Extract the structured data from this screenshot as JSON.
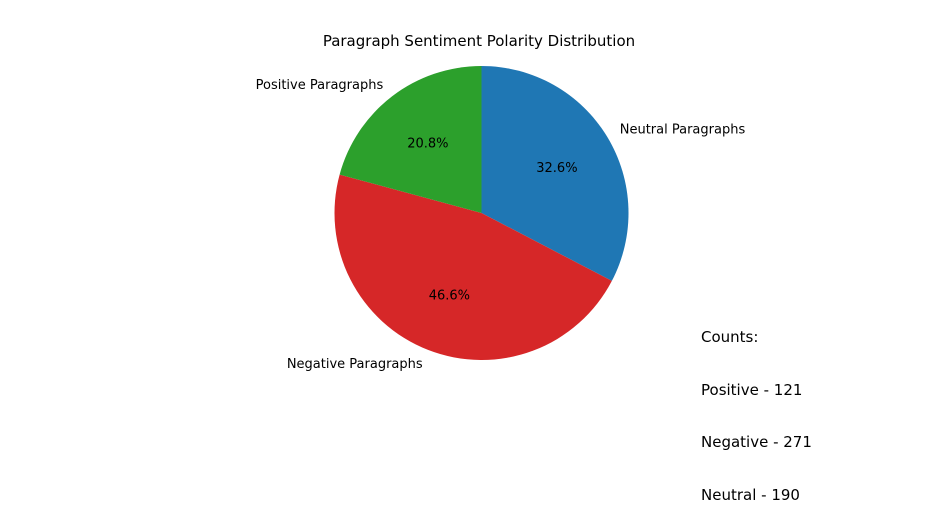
{
  "chart_data": {
    "type": "pie",
    "title": "Paragraph Sentiment Polarity Distribution",
    "slices": [
      {
        "label": "Neutral Paragraphs",
        "value": 190,
        "percent_label": "32.6%",
        "color": "#1f77b4"
      },
      {
        "label": "Negative Paragraphs",
        "value": 271,
        "percent_label": "46.6%",
        "color": "#d62728"
      },
      {
        "label": "Positive Paragraphs",
        "value": 121,
        "percent_label": "20.8%",
        "color": "#2ca02c"
      }
    ],
    "start_angle_deg": 90,
    "direction": "clockwise"
  },
  "annotation": {
    "heading": "Counts:",
    "lines": [
      "Positive - 121",
      "Negative - 271",
      "Neutral - 190"
    ]
  }
}
